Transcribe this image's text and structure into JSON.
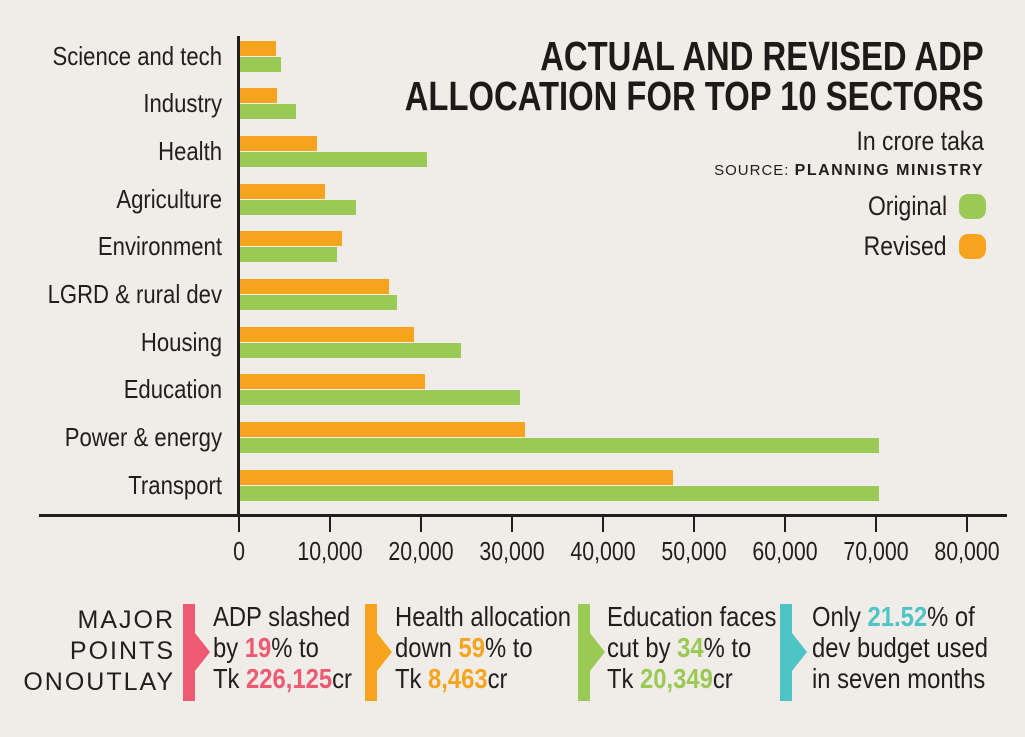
{
  "title": {
    "line1": "ACTUAL AND REVISED ADP",
    "line2": "ALLOCATION FOR TOP 10 SECTORS",
    "unit_note": "In crore taka",
    "source_label": "SOURCE:",
    "source_value": "PLANNING MINISTRY"
  },
  "legend": [
    {
      "label": "Original",
      "color": "#9aca55"
    },
    {
      "label": "Revised",
      "color": "#f6a41e"
    }
  ],
  "colors": {
    "background": "#f0ede9",
    "axis": "#211e1e",
    "original_green": "#9aca55",
    "revised_orange": "#f6a41e",
    "point_pink": "#ef5a73",
    "point_orange": "#f6a41e",
    "point_green": "#9aca55",
    "point_teal": "#4ec4c6"
  },
  "chart_data": {
    "type": "bar",
    "orientation": "horizontal",
    "unit": "crore taka",
    "categories": [
      "Science and tech",
      "Industry",
      "Health",
      "Agriculture",
      "Environment",
      "LGRD & rural dev",
      "Housing",
      "Education",
      "Power & energy",
      "Transport"
    ],
    "series": [
      {
        "name": "Original",
        "color": "#9aca55",
        "values": [
          4500,
          6200,
          20600,
          12800,
          10700,
          17300,
          24300,
          30800,
          70200,
          70200
        ]
      },
      {
        "name": "Revised",
        "color": "#f6a41e",
        "values": [
          4000,
          4100,
          8463,
          9300,
          11200,
          16400,
          19100,
          20349,
          31300,
          47600
        ]
      }
    ],
    "xlim": [
      0,
      80000
    ],
    "x_ticks": [
      0,
      10000,
      20000,
      30000,
      40000,
      50000,
      60000,
      70000,
      80000
    ],
    "x_tick_labels": [
      "0",
      "10,000",
      "20,000",
      "30,000",
      "40,000",
      "50,000",
      "60,000",
      "70,000",
      "80,000"
    ],
    "grid": false,
    "legend_position": "top-right",
    "bar_order_note": "For each category the Revised (orange) bar is drawn above the Original (green) bar"
  },
  "major_points": {
    "heading_lines": [
      "MAJOR",
      "POINTS",
      "ONOUTLAY"
    ],
    "items": [
      {
        "color": "#ef5a73",
        "lines": [
          [
            {
              "t": "ADP slashed"
            }
          ],
          [
            {
              "t": "by "
            },
            {
              "t": "19",
              "hl": true
            },
            {
              "t": "% to"
            }
          ],
          [
            {
              "t": "Tk "
            },
            {
              "t": "226,125",
              "hl": true
            },
            {
              "t": "cr"
            }
          ]
        ]
      },
      {
        "color": "#f6a41e",
        "lines": [
          [
            {
              "t": "Health allocation"
            }
          ],
          [
            {
              "t": "down "
            },
            {
              "t": "59",
              "hl": true
            },
            {
              "t": "% to"
            }
          ],
          [
            {
              "t": "Tk "
            },
            {
              "t": "8,463",
              "hl": true
            },
            {
              "t": "cr"
            }
          ]
        ]
      },
      {
        "color": "#9aca55",
        "lines": [
          [
            {
              "t": "Education faces"
            }
          ],
          [
            {
              "t": "cut by "
            },
            {
              "t": "34",
              "hl": true
            },
            {
              "t": "% to"
            }
          ],
          [
            {
              "t": "Tk "
            },
            {
              "t": "20,349",
              "hl": true
            },
            {
              "t": "cr"
            }
          ]
        ]
      },
      {
        "color": "#4ec4c6",
        "lines": [
          [
            {
              "t": "Only "
            },
            {
              "t": "21.52",
              "hl": true
            },
            {
              "t": "% of"
            }
          ],
          [
            {
              "t": "dev budget used"
            }
          ],
          [
            {
              "t": "in seven months"
            }
          ]
        ]
      }
    ]
  }
}
